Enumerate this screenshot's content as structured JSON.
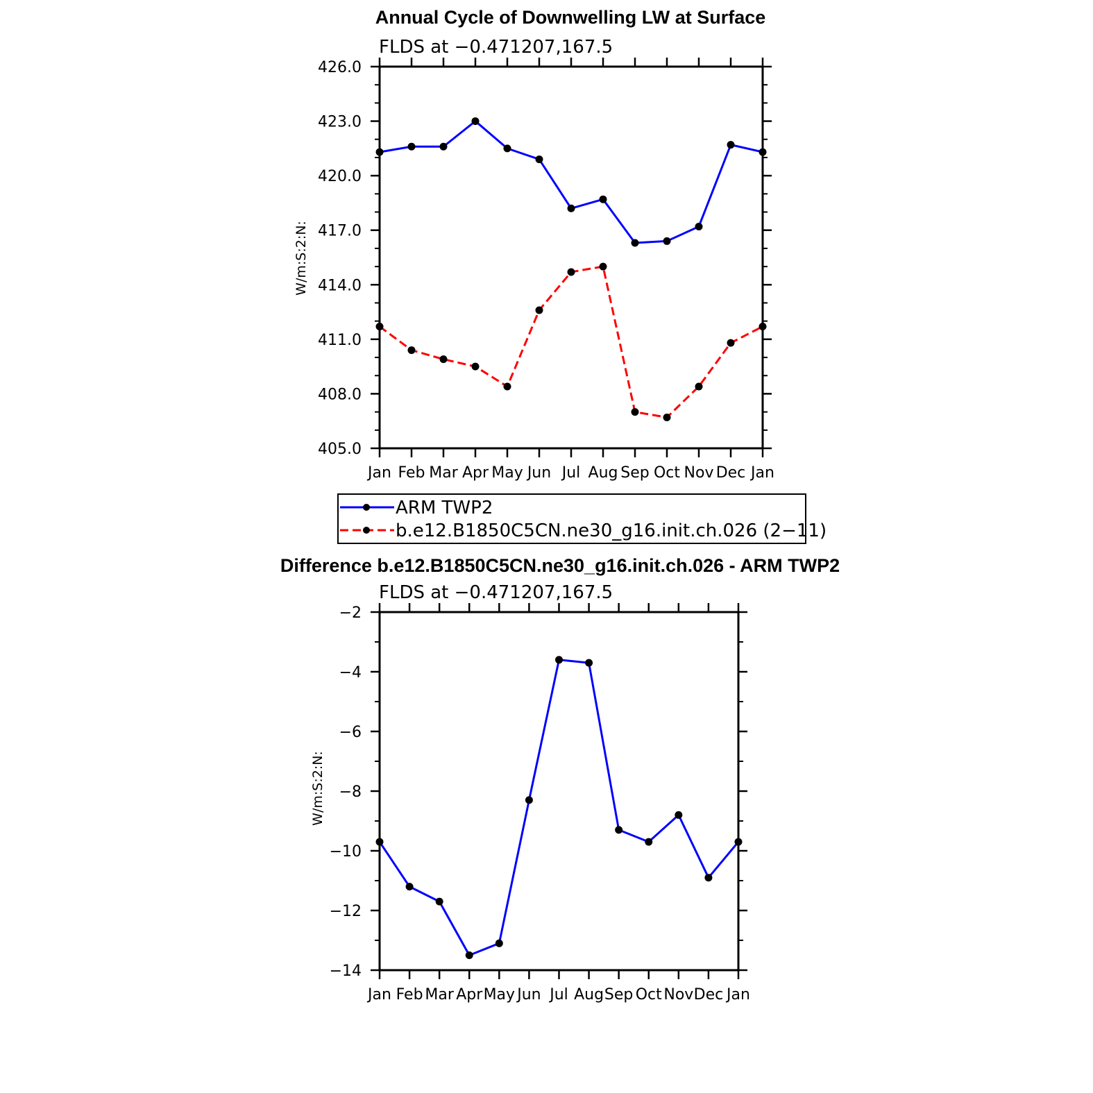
{
  "chart_data": [
    {
      "type": "line",
      "title": "Annual Cycle of Downwelling LW at Surface",
      "subtitle": "FLDS at −0.471207,167.5",
      "ylabel": "W/m:S:2:N:",
      "xlabel": "",
      "categories": [
        "Jan",
        "Feb",
        "Mar",
        "Apr",
        "May",
        "Jun",
        "Jul",
        "Aug",
        "Sep",
        "Oct",
        "Nov",
        "Dec",
        "Jan"
      ],
      "ylim": [
        405.0,
        426.0
      ],
      "yticks": [
        "405.0",
        "408.0",
        "411.0",
        "414.0",
        "417.0",
        "420.0",
        "423.0",
        "426.0"
      ],
      "series": [
        {
          "name": "ARM TWP2",
          "color": "#0000ff",
          "style": "solid",
          "values": [
            421.3,
            421.6,
            421.6,
            423.0,
            421.5,
            420.9,
            418.2,
            418.7,
            416.3,
            416.4,
            417.2,
            421.7,
            421.3
          ]
        },
        {
          "name": "b.e12.B1850C5CN.ne30_g16.init.ch.026 (2−11)",
          "color": "#ff0000",
          "style": "dashed",
          "values": [
            411.7,
            410.4,
            409.9,
            409.5,
            408.4,
            412.6,
            414.7,
            415.0,
            407.0,
            406.7,
            408.4,
            410.8,
            411.7
          ]
        }
      ],
      "legend": "below"
    },
    {
      "type": "line",
      "title": "Difference b.e12.B1850C5CN.ne30_g16.init.ch.026 - ARM TWP2",
      "subtitle": "FLDS at −0.471207,167.5",
      "ylabel": "W/m:S:2:N:",
      "xlabel": "",
      "categories": [
        "Jan",
        "Feb",
        "Mar",
        "Apr",
        "May",
        "Jun",
        "Jul",
        "Aug",
        "Sep",
        "Oct",
        "Nov",
        "Dec",
        "Jan"
      ],
      "ylim": [
        -14,
        -2
      ],
      "yticks": [
        "−14",
        "−12",
        "−10",
        "−8",
        "−6",
        "−4",
        "−2"
      ],
      "series": [
        {
          "name": "Difference",
          "color": "#0000ff",
          "style": "solid",
          "values": [
            -9.7,
            -11.2,
            -11.7,
            -13.5,
            -13.1,
            -8.3,
            -3.6,
            -3.7,
            -9.3,
            -9.7,
            -8.8,
            -10.9,
            -9.7
          ]
        }
      ]
    }
  ]
}
